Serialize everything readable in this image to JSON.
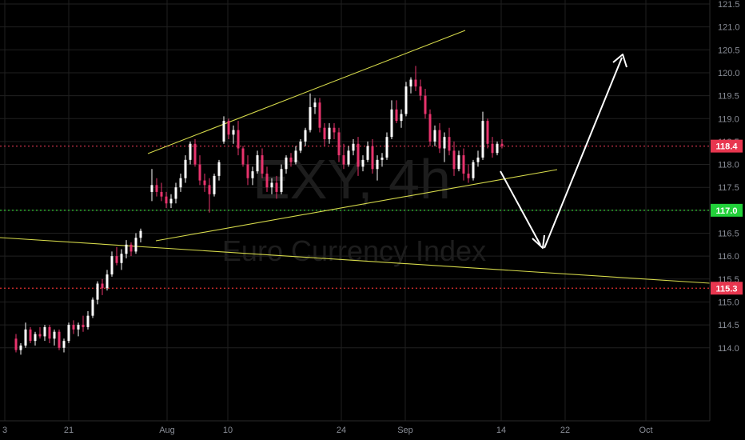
{
  "chart_data": {
    "type": "candlestick",
    "symbol_watermark": "EXY, 4h",
    "name_watermark": "Euro Currency Index",
    "y_axis": {
      "ticks": [
        "121.5",
        "121.0",
        "120.5",
        "120.0",
        "119.5",
        "119.0",
        "118.5",
        "118.0",
        "117.5",
        "117.0",
        "116.5",
        "116.0",
        "115.5",
        "115.0",
        "114.5",
        "114.0"
      ],
      "range": [
        113.85,
        121.6
      ]
    },
    "x_axis": {
      "ticks": [
        "3",
        "21",
        "Aug",
        "10",
        "24",
        "Sep",
        "14",
        "22",
        "Oct"
      ]
    },
    "price_labels": [
      {
        "value": 118.4,
        "text": "118.4",
        "color": "#e8364f"
      },
      {
        "value": 117.0,
        "text": "117.0",
        "color": "#22d13a"
      },
      {
        "value": 115.3,
        "text": "115.3",
        "color": "#e8364f"
      }
    ],
    "horizontal_levels": [
      {
        "value": 118.4,
        "style": "dotted",
        "color": "#c8334a"
      },
      {
        "value": 117.0,
        "style": "dotted",
        "color": "#33cc33"
      },
      {
        "value": 115.3,
        "style": "dotted",
        "color": "#e02f2f"
      }
    ],
    "colors": {
      "up": "#ffffff",
      "down": "#e8336d",
      "trendline": "#d4d84a",
      "arrow": "#ffffff",
      "background": "#000000",
      "grid": "#202020"
    },
    "candles_ohlc": [
      [
        114.2,
        114.3,
        113.9,
        113.95
      ],
      [
        113.95,
        114.1,
        113.85,
        114.05
      ],
      [
        114.05,
        114.55,
        114.0,
        114.4
      ],
      [
        114.4,
        114.45,
        114.1,
        114.15
      ],
      [
        114.15,
        114.35,
        114.05,
        114.3
      ],
      [
        114.3,
        114.45,
        114.2,
        114.25
      ],
      [
        114.25,
        114.5,
        114.15,
        114.45
      ],
      [
        114.45,
        114.5,
        114.1,
        114.2
      ],
      [
        114.2,
        114.4,
        114.05,
        114.35
      ],
      [
        114.35,
        114.4,
        113.95,
        114.0
      ],
      [
        114.0,
        114.2,
        113.9,
        114.15
      ],
      [
        114.15,
        114.55,
        114.1,
        114.5
      ],
      [
        114.5,
        114.6,
        114.3,
        114.4
      ],
      [
        114.4,
        114.55,
        114.25,
        114.5
      ],
      [
        114.5,
        114.7,
        114.35,
        114.45
      ],
      [
        114.45,
        114.8,
        114.4,
        114.7
      ],
      [
        114.7,
        115.1,
        114.65,
        115.05
      ],
      [
        115.05,
        115.45,
        114.95,
        115.4
      ],
      [
        115.4,
        115.5,
        115.15,
        115.3
      ],
      [
        115.3,
        115.7,
        115.25,
        115.6
      ],
      [
        115.6,
        116.1,
        115.55,
        116.0
      ],
      [
        116.0,
        116.2,
        115.8,
        115.85
      ],
      [
        115.85,
        116.15,
        115.7,
        116.05
      ],
      [
        116.05,
        116.35,
        115.95,
        116.25
      ],
      [
        116.25,
        116.3,
        116.0,
        116.1
      ],
      [
        116.1,
        116.5,
        116.05,
        116.4
      ],
      [
        116.4,
        116.6,
        116.3,
        116.55
      ],
      [
        117.4,
        117.9,
        117.2,
        117.55
      ],
      [
        117.55,
        117.7,
        117.3,
        117.4
      ],
      [
        117.4,
        117.6,
        117.2,
        117.3
      ],
      [
        117.3,
        117.4,
        117.05,
        117.15
      ],
      [
        117.15,
        117.35,
        117.05,
        117.25
      ],
      [
        117.25,
        117.6,
        117.15,
        117.5
      ],
      [
        117.5,
        117.8,
        117.4,
        117.7
      ],
      [
        117.7,
        118.2,
        117.6,
        118.1
      ],
      [
        118.1,
        118.5,
        118.0,
        118.45
      ],
      [
        118.45,
        118.55,
        117.95,
        118.0
      ],
      [
        118.0,
        118.2,
        117.55,
        117.65
      ],
      [
        117.65,
        117.8,
        117.4,
        117.55
      ],
      [
        117.55,
        117.7,
        116.95,
        117.35
      ],
      [
        117.35,
        117.8,
        117.3,
        117.75
      ],
      [
        117.75,
        118.1,
        117.65,
        118.05
      ],
      [
        118.5,
        119.05,
        118.45,
        118.95
      ],
      [
        118.95,
        119.0,
        118.55,
        118.65
      ],
      [
        118.65,
        118.85,
        118.45,
        118.75
      ],
      [
        118.75,
        118.95,
        118.2,
        118.35
      ],
      [
        118.35,
        118.4,
        117.95,
        118.0
      ],
      [
        118.0,
        118.2,
        117.55,
        117.7
      ],
      [
        117.7,
        117.95,
        117.55,
        117.85
      ],
      [
        117.85,
        118.3,
        117.8,
        118.2
      ],
      [
        118.2,
        118.35,
        117.7,
        117.8
      ],
      [
        117.8,
        117.95,
        117.4,
        117.5
      ],
      [
        117.5,
        117.7,
        117.35,
        117.6
      ],
      [
        117.6,
        117.75,
        117.25,
        117.4
      ],
      [
        117.4,
        118.0,
        117.35,
        117.9
      ],
      [
        117.9,
        118.2,
        117.8,
        118.15
      ],
      [
        118.15,
        118.25,
        117.95,
        118.05
      ],
      [
        118.05,
        118.4,
        118.0,
        118.3
      ],
      [
        118.3,
        118.55,
        118.25,
        118.5
      ],
      [
        118.5,
        118.8,
        118.4,
        118.75
      ],
      [
        118.75,
        119.55,
        118.7,
        119.25
      ],
      [
        119.25,
        119.45,
        119.1,
        119.35
      ],
      [
        119.35,
        119.45,
        118.7,
        118.8
      ],
      [
        118.8,
        118.9,
        118.4,
        118.55
      ],
      [
        118.55,
        118.9,
        118.45,
        118.8
      ],
      [
        118.8,
        118.9,
        118.55,
        118.7
      ],
      [
        118.7,
        118.8,
        118.05,
        118.2
      ],
      [
        118.2,
        118.45,
        117.9,
        118.0
      ],
      [
        118.0,
        118.4,
        117.95,
        118.3
      ],
      [
        118.3,
        118.55,
        118.2,
        118.45
      ],
      [
        118.45,
        118.6,
        117.75,
        117.95
      ],
      [
        117.95,
        118.2,
        117.85,
        118.1
      ],
      [
        118.1,
        118.5,
        118.05,
        118.4
      ],
      [
        118.4,
        118.55,
        117.8,
        117.9
      ],
      [
        117.9,
        118.2,
        117.65,
        118.1
      ],
      [
        118.1,
        118.25,
        117.95,
        118.15
      ],
      [
        118.15,
        118.7,
        118.1,
        118.6
      ],
      [
        118.6,
        119.4,
        118.55,
        119.2
      ],
      [
        119.2,
        119.4,
        118.9,
        118.95
      ],
      [
        118.95,
        119.2,
        118.8,
        119.1
      ],
      [
        119.1,
        119.8,
        119.05,
        119.7
      ],
      [
        119.7,
        119.9,
        119.55,
        119.85
      ],
      [
        119.85,
        120.15,
        119.6,
        119.7
      ],
      [
        119.7,
        119.85,
        119.4,
        119.5
      ],
      [
        119.5,
        119.65,
        119.0,
        119.1
      ],
      [
        119.1,
        119.2,
        118.4,
        118.5
      ],
      [
        118.5,
        118.85,
        118.4,
        118.75
      ],
      [
        118.75,
        118.9,
        118.25,
        118.35
      ],
      [
        118.35,
        118.7,
        118.05,
        118.6
      ],
      [
        118.6,
        118.8,
        118.2,
        118.3
      ],
      [
        118.3,
        118.5,
        117.75,
        117.9
      ],
      [
        117.9,
        118.3,
        117.85,
        118.2
      ],
      [
        118.2,
        118.35,
        117.65,
        117.8
      ],
      [
        117.8,
        118.0,
        117.6,
        117.7
      ],
      [
        117.7,
        118.1,
        117.65,
        118.05
      ],
      [
        118.05,
        118.3,
        117.95,
        118.15
      ],
      [
        118.15,
        119.15,
        118.1,
        118.95
      ],
      [
        118.95,
        119.0,
        118.35,
        118.45
      ],
      [
        118.45,
        118.6,
        118.15,
        118.25
      ],
      [
        118.25,
        118.5,
        118.2,
        118.45
      ],
      [
        118.45,
        118.55,
        118.35,
        118.4
      ]
    ]
  }
}
